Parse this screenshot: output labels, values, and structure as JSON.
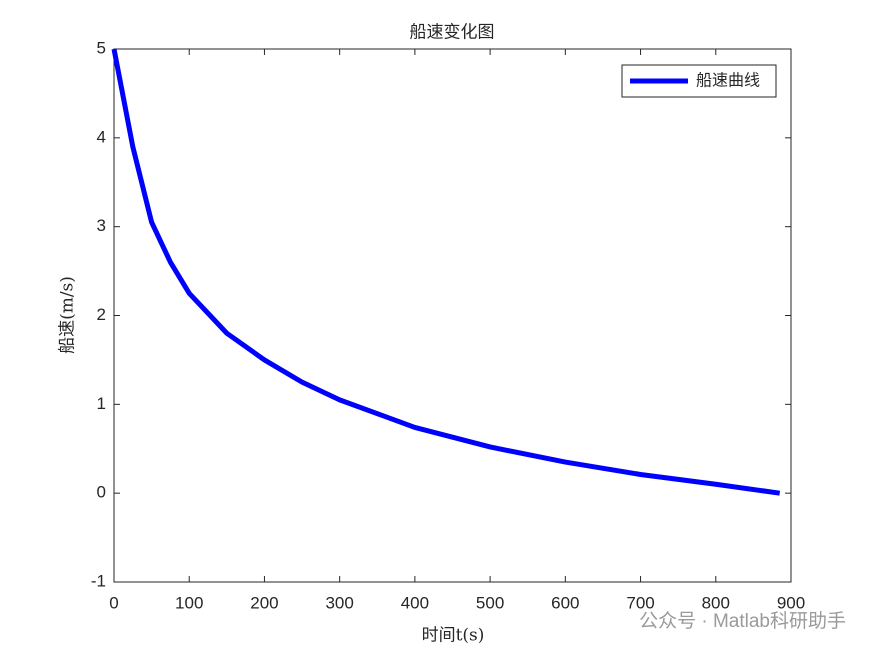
{
  "chart_data": {
    "type": "line",
    "title": "船速变化图",
    "xlabel": "时间t(s)",
    "ylabel": "船速(m/s)",
    "x": [
      0,
      25,
      50,
      75,
      100,
      150,
      200,
      250,
      300,
      400,
      500,
      600,
      700,
      800,
      885
    ],
    "series": [
      {
        "name": "船速曲线",
        "color": "#0000ff",
        "values": [
          5,
          3.9,
          3.05,
          2.6,
          2.25,
          1.8,
          1.5,
          1.25,
          1.05,
          0.74,
          0.52,
          0.35,
          0.21,
          0.1,
          0
        ]
      }
    ],
    "xlim": [
      0,
      900
    ],
    "xticks": [
      0,
      100,
      200,
      300,
      400,
      500,
      600,
      700,
      800,
      900
    ],
    "ylim": [
      -1,
      5
    ],
    "yticks": [
      -1,
      0,
      1,
      2,
      3,
      4,
      5
    ],
    "legend": "upper right",
    "grid": false
  },
  "watermark": "公众号 · Matlab科研助手"
}
